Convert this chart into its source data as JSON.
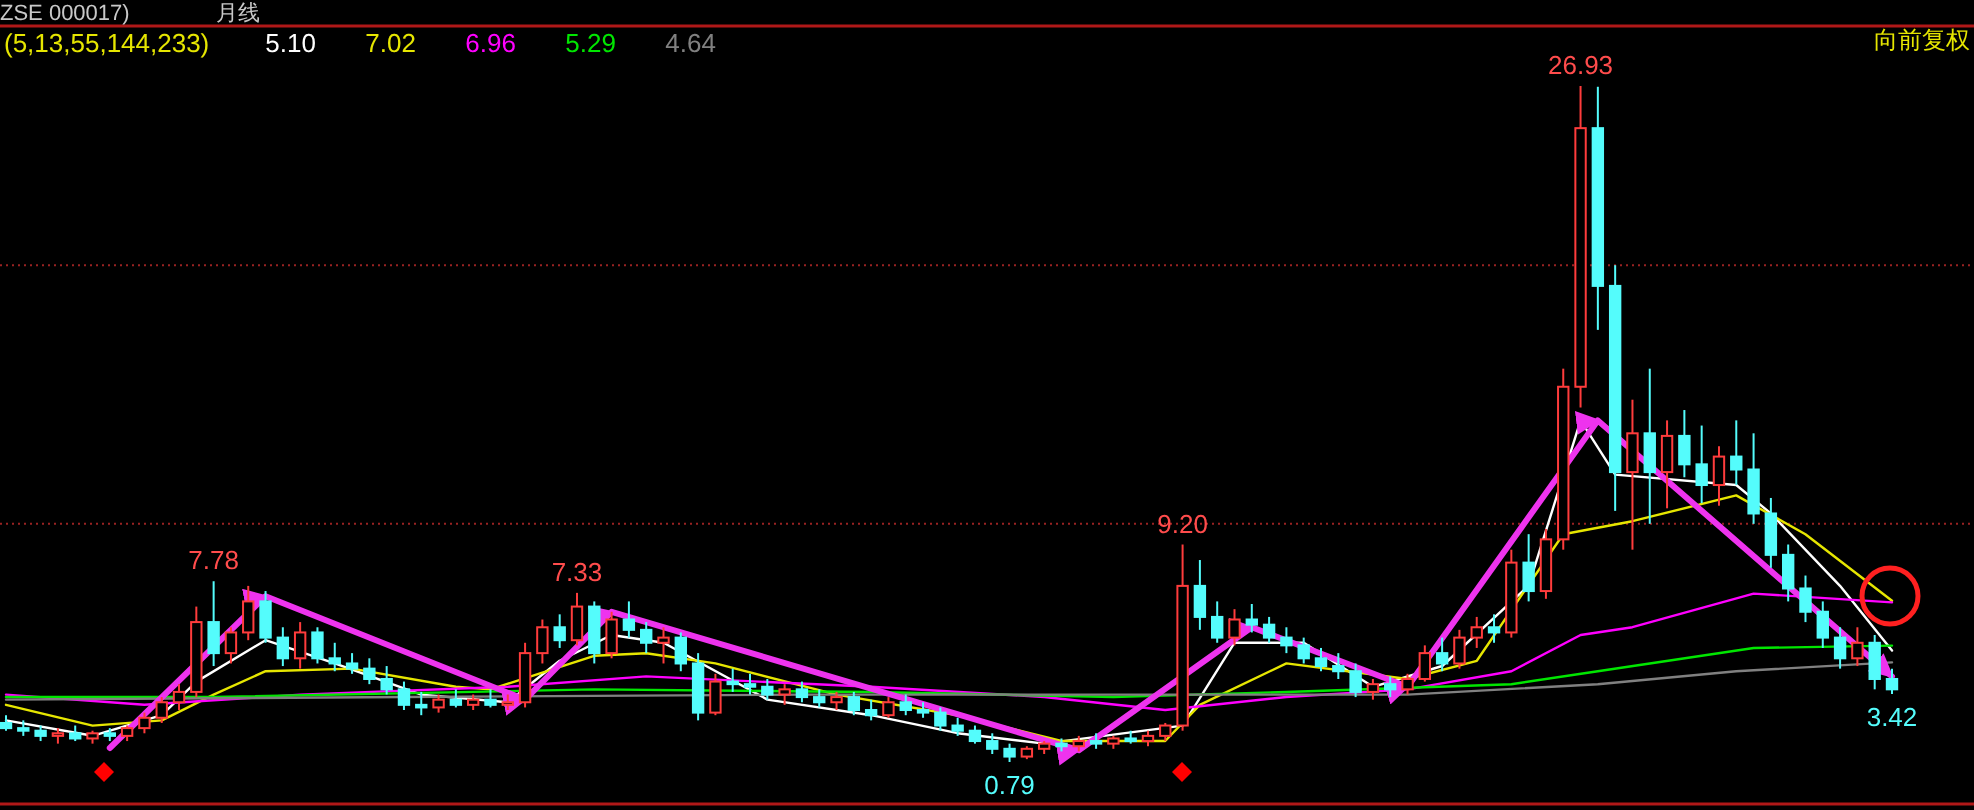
{
  "chart_data": {
    "type": "candlestick",
    "title": "ZSE 000017)",
    "subtitle": "月线",
    "legend_title": "(5,13,55,144,233)",
    "legend": "top left",
    "categories": [
      null,
      null,
      null,
      null,
      null,
      null,
      null,
      null,
      null,
      null,
      null,
      null,
      null,
      null,
      null,
      null,
      null,
      null,
      null,
      null,
      null,
      null,
      null,
      null,
      null,
      null,
      null,
      null,
      null,
      null,
      null,
      null,
      null,
      null,
      null,
      null,
      null,
      null,
      null,
      null,
      null,
      null,
      null,
      null,
      null,
      null,
      null,
      null,
      null,
      null,
      null,
      null,
      null,
      null,
      null,
      null,
      null,
      null,
      null,
      null,
      null,
      null,
      null,
      null,
      null,
      null,
      null,
      null,
      null,
      null,
      null,
      null,
      null,
      null,
      null,
      null,
      null,
      null,
      null,
      null,
      null,
      null,
      null,
      null,
      null,
      null,
      null,
      null,
      null,
      null,
      null,
      null,
      null,
      null,
      null,
      null,
      null,
      null,
      null,
      null,
      null,
      null,
      null,
      null,
      null,
      null,
      null,
      null,
      null,
      null
    ],
    "ohlc": [
      [
        2.3,
        2.6,
        2.0,
        2.1
      ],
      [
        2.1,
        2.4,
        1.8,
        2.0
      ],
      [
        2.0,
        2.2,
        1.6,
        1.8
      ],
      [
        1.8,
        2.1,
        1.5,
        1.9
      ],
      [
        1.9,
        2.2,
        1.6,
        1.7
      ],
      [
        1.7,
        2.0,
        1.5,
        1.9
      ],
      [
        1.9,
        2.1,
        1.6,
        1.8
      ],
      [
        1.8,
        2.2,
        1.6,
        2.1
      ],
      [
        2.1,
        2.7,
        1.9,
        2.5
      ],
      [
        2.5,
        3.3,
        2.3,
        3.1
      ],
      [
        3.1,
        3.8,
        2.8,
        3.5
      ],
      [
        3.5,
        6.8,
        3.3,
        6.2
      ],
      [
        6.2,
        7.78,
        4.5,
        5.0
      ],
      [
        5.0,
        6.0,
        4.6,
        5.8
      ],
      [
        5.8,
        7.6,
        5.5,
        7.0
      ],
      [
        7.0,
        7.4,
        5.4,
        5.6
      ],
      [
        5.6,
        6.0,
        4.5,
        4.8
      ],
      [
        4.8,
        6.2,
        4.4,
        5.8
      ],
      [
        5.8,
        6.0,
        4.6,
        4.8
      ],
      [
        4.8,
        5.4,
        4.3,
        4.6
      ],
      [
        4.6,
        5.0,
        4.2,
        4.4
      ],
      [
        4.4,
        4.8,
        3.8,
        4.0
      ],
      [
        4.0,
        4.5,
        3.4,
        3.6
      ],
      [
        3.6,
        3.9,
        2.8,
        3.0
      ],
      [
        3.0,
        3.5,
        2.6,
        2.9
      ],
      [
        2.9,
        3.4,
        2.7,
        3.2
      ],
      [
        3.2,
        3.6,
        2.9,
        3.0
      ],
      [
        3.0,
        3.4,
        2.8,
        3.2
      ],
      [
        3.2,
        3.6,
        2.9,
        3.0
      ],
      [
        3.0,
        3.4,
        2.8,
        3.1
      ],
      [
        3.1,
        5.4,
        2.9,
        5.0
      ],
      [
        5.0,
        6.3,
        4.6,
        6.0
      ],
      [
        6.0,
        6.5,
        5.2,
        5.5
      ],
      [
        5.5,
        7.33,
        5.3,
        6.8
      ],
      [
        6.8,
        7.0,
        4.6,
        5.0
      ],
      [
        5.0,
        6.6,
        4.8,
        6.3
      ],
      [
        6.3,
        7.0,
        5.6,
        5.9
      ],
      [
        5.9,
        6.2,
        5.0,
        5.4
      ],
      [
        5.4,
        6.0,
        4.6,
        5.6
      ],
      [
        5.6,
        5.8,
        4.3,
        4.6
      ],
      [
        4.6,
        5.0,
        2.4,
        2.7
      ],
      [
        2.7,
        4.2,
        2.6,
        3.9
      ],
      [
        3.9,
        4.4,
        3.5,
        3.8
      ],
      [
        3.8,
        4.2,
        3.4,
        3.7
      ],
      [
        3.7,
        4.0,
        3.2,
        3.4
      ],
      [
        3.4,
        3.8,
        3.0,
        3.6
      ],
      [
        3.6,
        3.9,
        3.1,
        3.3
      ],
      [
        3.3,
        3.6,
        2.9,
        3.1
      ],
      [
        3.1,
        3.5,
        2.8,
        3.3
      ],
      [
        3.3,
        3.5,
        2.6,
        2.8
      ],
      [
        2.8,
        3.2,
        2.4,
        2.6
      ],
      [
        2.6,
        3.3,
        2.5,
        3.1
      ],
      [
        3.1,
        3.4,
        2.6,
        2.8
      ],
      [
        2.8,
        3.1,
        2.5,
        2.7
      ],
      [
        2.7,
        2.9,
        2.0,
        2.2
      ],
      [
        2.2,
        2.5,
        1.8,
        2.0
      ],
      [
        2.0,
        2.2,
        1.5,
        1.6
      ],
      [
        1.6,
        1.9,
        1.1,
        1.3
      ],
      [
        1.3,
        1.5,
        0.79,
        1.0
      ],
      [
        1.0,
        1.4,
        0.9,
        1.3
      ],
      [
        1.3,
        1.6,
        1.1,
        1.5
      ],
      [
        1.5,
        1.7,
        1.2,
        1.4
      ],
      [
        1.4,
        1.8,
        1.2,
        1.6
      ],
      [
        1.6,
        1.9,
        1.3,
        1.5
      ],
      [
        1.5,
        1.8,
        1.3,
        1.7
      ],
      [
        1.7,
        2.0,
        1.5,
        1.6
      ],
      [
        1.6,
        2.0,
        1.4,
        1.8
      ],
      [
        1.8,
        2.3,
        1.6,
        2.2
      ],
      [
        2.2,
        9.2,
        2.0,
        7.6
      ],
      [
        7.6,
        8.6,
        5.9,
        6.4
      ],
      [
        6.4,
        7.0,
        5.4,
        5.6
      ],
      [
        5.6,
        6.7,
        5.3,
        6.3
      ],
      [
        6.3,
        6.9,
        5.8,
        6.1
      ],
      [
        6.1,
        6.4,
        5.4,
        5.6
      ],
      [
        5.6,
        6.0,
        5.0,
        5.3
      ],
      [
        5.3,
        5.6,
        4.6,
        4.8
      ],
      [
        4.8,
        5.2,
        4.3,
        4.5
      ],
      [
        4.5,
        5.0,
        4.0,
        4.3
      ],
      [
        4.3,
        4.6,
        3.3,
        3.5
      ],
      [
        3.5,
        4.0,
        3.2,
        3.8
      ],
      [
        3.8,
        4.1,
        3.3,
        3.6
      ],
      [
        3.6,
        4.2,
        3.4,
        4.0
      ],
      [
        4.0,
        5.3,
        3.9,
        5.0
      ],
      [
        5.0,
        5.6,
        4.3,
        4.6
      ],
      [
        4.6,
        5.9,
        4.4,
        5.6
      ],
      [
        5.6,
        6.4,
        5.2,
        6.0
      ],
      [
        6.0,
        6.5,
        5.4,
        5.8
      ],
      [
        5.8,
        9.0,
        5.6,
        8.5
      ],
      [
        8.5,
        9.6,
        7.0,
        7.4
      ],
      [
        7.4,
        9.8,
        7.1,
        9.4
      ],
      [
        9.4,
        16.0,
        9.0,
        15.3
      ],
      [
        15.3,
        26.93,
        14.5,
        25.3
      ],
      [
        25.3,
        26.9,
        17.5,
        19.2
      ],
      [
        19.2,
        20.0,
        10.5,
        12.0
      ],
      [
        12.0,
        14.8,
        9.0,
        13.5
      ],
      [
        13.5,
        16.0,
        10.0,
        12.0
      ],
      [
        12.0,
        14.0,
        10.6,
        13.4
      ],
      [
        13.4,
        14.4,
        11.8,
        12.3
      ],
      [
        12.3,
        13.8,
        10.8,
        11.5
      ],
      [
        11.5,
        13.0,
        10.7,
        12.6
      ],
      [
        12.6,
        14.0,
        11.5,
        12.1
      ],
      [
        12.1,
        13.5,
        10.0,
        10.4
      ],
      [
        10.4,
        11.0,
        8.3,
        8.8
      ],
      [
        8.8,
        9.2,
        7.0,
        7.5
      ],
      [
        7.5,
        8.0,
        6.2,
        6.6
      ],
      [
        6.6,
        7.0,
        5.2,
        5.6
      ],
      [
        5.6,
        6.0,
        4.4,
        4.8
      ],
      [
        4.8,
        6.0,
        4.5,
        5.4
      ],
      [
        5.4,
        5.7,
        3.6,
        4.0
      ],
      [
        4.0,
        4.4,
        3.42,
        3.6
      ]
    ],
    "series": [
      {
        "type": "line",
        "name": "5.10",
        "color": "#ffffff",
        "values": [
          2.4,
          null,
          null,
          null,
          null,
          1.8,
          null,
          null,
          null,
          2.6,
          null,
          3.9,
          null,
          null,
          null,
          5.5,
          null,
          null,
          null,
          4.6,
          null,
          null,
          null,
          null,
          3.4,
          null,
          null,
          null,
          null,
          3.1,
          null,
          null,
          4.7,
          null,
          null,
          5.7,
          null,
          null,
          5.4,
          null,
          null,
          null,
          null,
          null,
          3.2,
          null,
          null,
          null,
          null,
          null,
          2.6,
          null,
          null,
          null,
          null,
          1.9,
          null,
          null,
          null,
          null,
          1.5,
          null,
          null,
          null,
          null,
          null,
          null,
          null,
          2.2,
          null,
          null,
          5.4,
          null,
          null,
          null,
          5.4,
          null,
          null,
          null,
          3.7,
          null,
          null,
          null,
          4.5,
          null,
          null,
          null,
          null,
          7.6,
          null,
          null,
          14.0,
          null,
          11.9,
          null,
          null,
          null,
          null,
          null,
          null,
          11.5,
          null,
          10.4,
          null,
          null,
          null,
          7.6,
          null,
          null,
          5.1
        ]
      },
      {
        "type": "line",
        "name": "7.02",
        "color": "#e6e600",
        "values": [
          3.0,
          null,
          null,
          null,
          null,
          2.2,
          null,
          null,
          null,
          2.4,
          null,
          null,
          3.4,
          null,
          null,
          4.3,
          null,
          null,
          null,
          null,
          4.4,
          null,
          null,
          null,
          null,
          null,
          3.7,
          null,
          3.6,
          null,
          null,
          null,
          null,
          null,
          4.9,
          null,
          null,
          5.0,
          null,
          null,
          null,
          4.6,
          null,
          null,
          null,
          null,
          null,
          null,
          3.4,
          null,
          null,
          null,
          null,
          null,
          null,
          2.6,
          null,
          null,
          null,
          null,
          null,
          1.6,
          null,
          null,
          null,
          null,
          null,
          1.6,
          null,
          3.0,
          null,
          null,
          null,
          null,
          4.6,
          null,
          null,
          null,
          null,
          null,
          null,
          4.0,
          null,
          null,
          null,
          4.7,
          null,
          null,
          null,
          null,
          9.6,
          null,
          null,
          null,
          10.1,
          null,
          null,
          null,
          null,
          null,
          11.1,
          null,
          null,
          null,
          9.6,
          null,
          null,
          null,
          null,
          7.02
        ]
      },
      {
        "type": "line",
        "name": "6.96",
        "color": "#ff00ff",
        "values": [
          3.4,
          null,
          null,
          null,
          null,
          null,
          null,
          null,
          3.0,
          null,
          null,
          null,
          null,
          null,
          null,
          null,
          null,
          3.4,
          null,
          null,
          null,
          null,
          null,
          null,
          null,
          null,
          null,
          null,
          null,
          3.7,
          null,
          null,
          null,
          null,
          null,
          null,
          null,
          4.1,
          null,
          null,
          null,
          null,
          null,
          null,
          null,
          null,
          null,
          null,
          null,
          null,
          3.7,
          null,
          null,
          null,
          null,
          null,
          null,
          null,
          null,
          null,
          3.3,
          null,
          null,
          null,
          null,
          null,
          null,
          2.8,
          null,
          null,
          null,
          null,
          null,
          null,
          3.3,
          null,
          null,
          null,
          null,
          null,
          null,
          3.6,
          null,
          null,
          null,
          null,
          null,
          4.3,
          null,
          null,
          null,
          5.7,
          null,
          null,
          6.0,
          null,
          null,
          null,
          null,
          null,
          null,
          7.3,
          null,
          null,
          null,
          null,
          null,
          null,
          null,
          6.96
        ]
      },
      {
        "type": "line",
        "name": "5.29",
        "color": "#00e600",
        "values": [
          3.3,
          null,
          null,
          null,
          null,
          null,
          null,
          null,
          null,
          null,
          null,
          null,
          3.3,
          null,
          null,
          null,
          null,
          null,
          null,
          null,
          null,
          null,
          null,
          null,
          null,
          null,
          null,
          null,
          null,
          null,
          null,
          null,
          null,
          null,
          3.6,
          null,
          null,
          null,
          null,
          null,
          null,
          null,
          null,
          null,
          null,
          null,
          null,
          null,
          null,
          null,
          3.5,
          null,
          null,
          null,
          null,
          null,
          null,
          null,
          null,
          null,
          null,
          null,
          null,
          null,
          3.3,
          null,
          null,
          null,
          null,
          null,
          null,
          null,
          null,
          null,
          3.5,
          null,
          null,
          null,
          null,
          null,
          null,
          null,
          null,
          null,
          null,
          null,
          null,
          3.8,
          null,
          null,
          null,
          null,
          4.3,
          null,
          null,
          null,
          null,
          null,
          null,
          null,
          null,
          5.2,
          null,
          null,
          null,
          null,
          null,
          null,
          null,
          5.29
        ]
      },
      {
        "type": "line",
        "name": "4.64",
        "color": "#808080",
        "values": [
          3.2,
          null,
          null,
          null,
          null,
          null,
          null,
          null,
          null,
          null,
          null,
          null,
          null,
          null,
          null,
          null,
          null,
          null,
          null,
          null,
          null,
          null,
          null,
          3.3,
          null,
          null,
          null,
          null,
          null,
          null,
          null,
          null,
          null,
          null,
          null,
          null,
          null,
          null,
          null,
          null,
          null,
          null,
          null,
          null,
          null,
          null,
          3.4,
          null,
          null,
          null,
          null,
          null,
          null,
          null,
          null,
          null,
          null,
          null,
          null,
          null,
          null,
          null,
          null,
          null,
          null,
          null,
          null,
          null,
          null,
          3.4,
          null,
          null,
          null,
          null,
          null,
          null,
          null,
          null,
          null,
          null,
          null,
          3.4,
          null,
          null,
          null,
          null,
          null,
          null,
          null,
          null,
          null,
          null,
          3.8,
          null,
          null,
          null,
          null,
          null,
          null,
          null,
          4.3,
          null,
          null,
          null,
          null,
          null,
          null,
          null,
          null,
          4.64
        ]
      },
      {
        "type": "line",
        "color": "#ee33ee",
        "values": [
          null,
          null,
          null,
          null,
          null,
          null,
          1.33,
          null,
          null,
          null,
          null,
          null,
          null,
          null,
          null,
          7.2,
          null,
          null,
          null,
          null,
          null,
          null,
          null,
          null,
          null,
          null,
          null,
          null,
          null,
          null,
          3.2,
          null,
          null,
          null,
          null,
          6.6,
          null,
          null,
          null,
          null,
          null,
          null,
          null,
          null,
          null,
          null,
          null,
          null,
          null,
          null,
          null,
          null,
          null,
          null,
          null,
          null,
          null,
          null,
          null,
          null,
          null,
          null,
          1.25,
          null,
          null,
          null,
          null,
          null,
          null,
          null,
          null,
          null,
          6.0,
          null,
          null,
          null,
          null,
          null,
          null,
          null,
          null,
          3.7,
          null,
          null,
          null,
          null,
          null,
          null,
          null,
          null,
          null,
          null,
          14.0,
          null,
          null,
          null,
          null,
          null,
          null,
          null,
          null,
          null,
          null,
          null,
          null,
          null,
          null,
          null,
          null,
          4.1
        ]
      }
    ],
    "ref_lines": [
      {
        "axis": "y",
        "value": 10,
        "color": "#992222",
        "line_style": "dotted"
      },
      {
        "axis": "y",
        "value": 20,
        "color": "#992222",
        "line_style": "dotted"
      }
    ],
    "annotations": [
      {
        "text": "7.78",
        "y": 7.78
      },
      {
        "text": "7.33",
        "y": 7.33
      },
      {
        "text": "0.79",
        "y": 0.79
      },
      {
        "text": "9.20",
        "y": 9.2
      },
      {
        "text": "26.93",
        "y": 26.93
      },
      {
        "text": "3.42",
        "y": 3.42
      },
      "向前复权"
    ]
  }
}
